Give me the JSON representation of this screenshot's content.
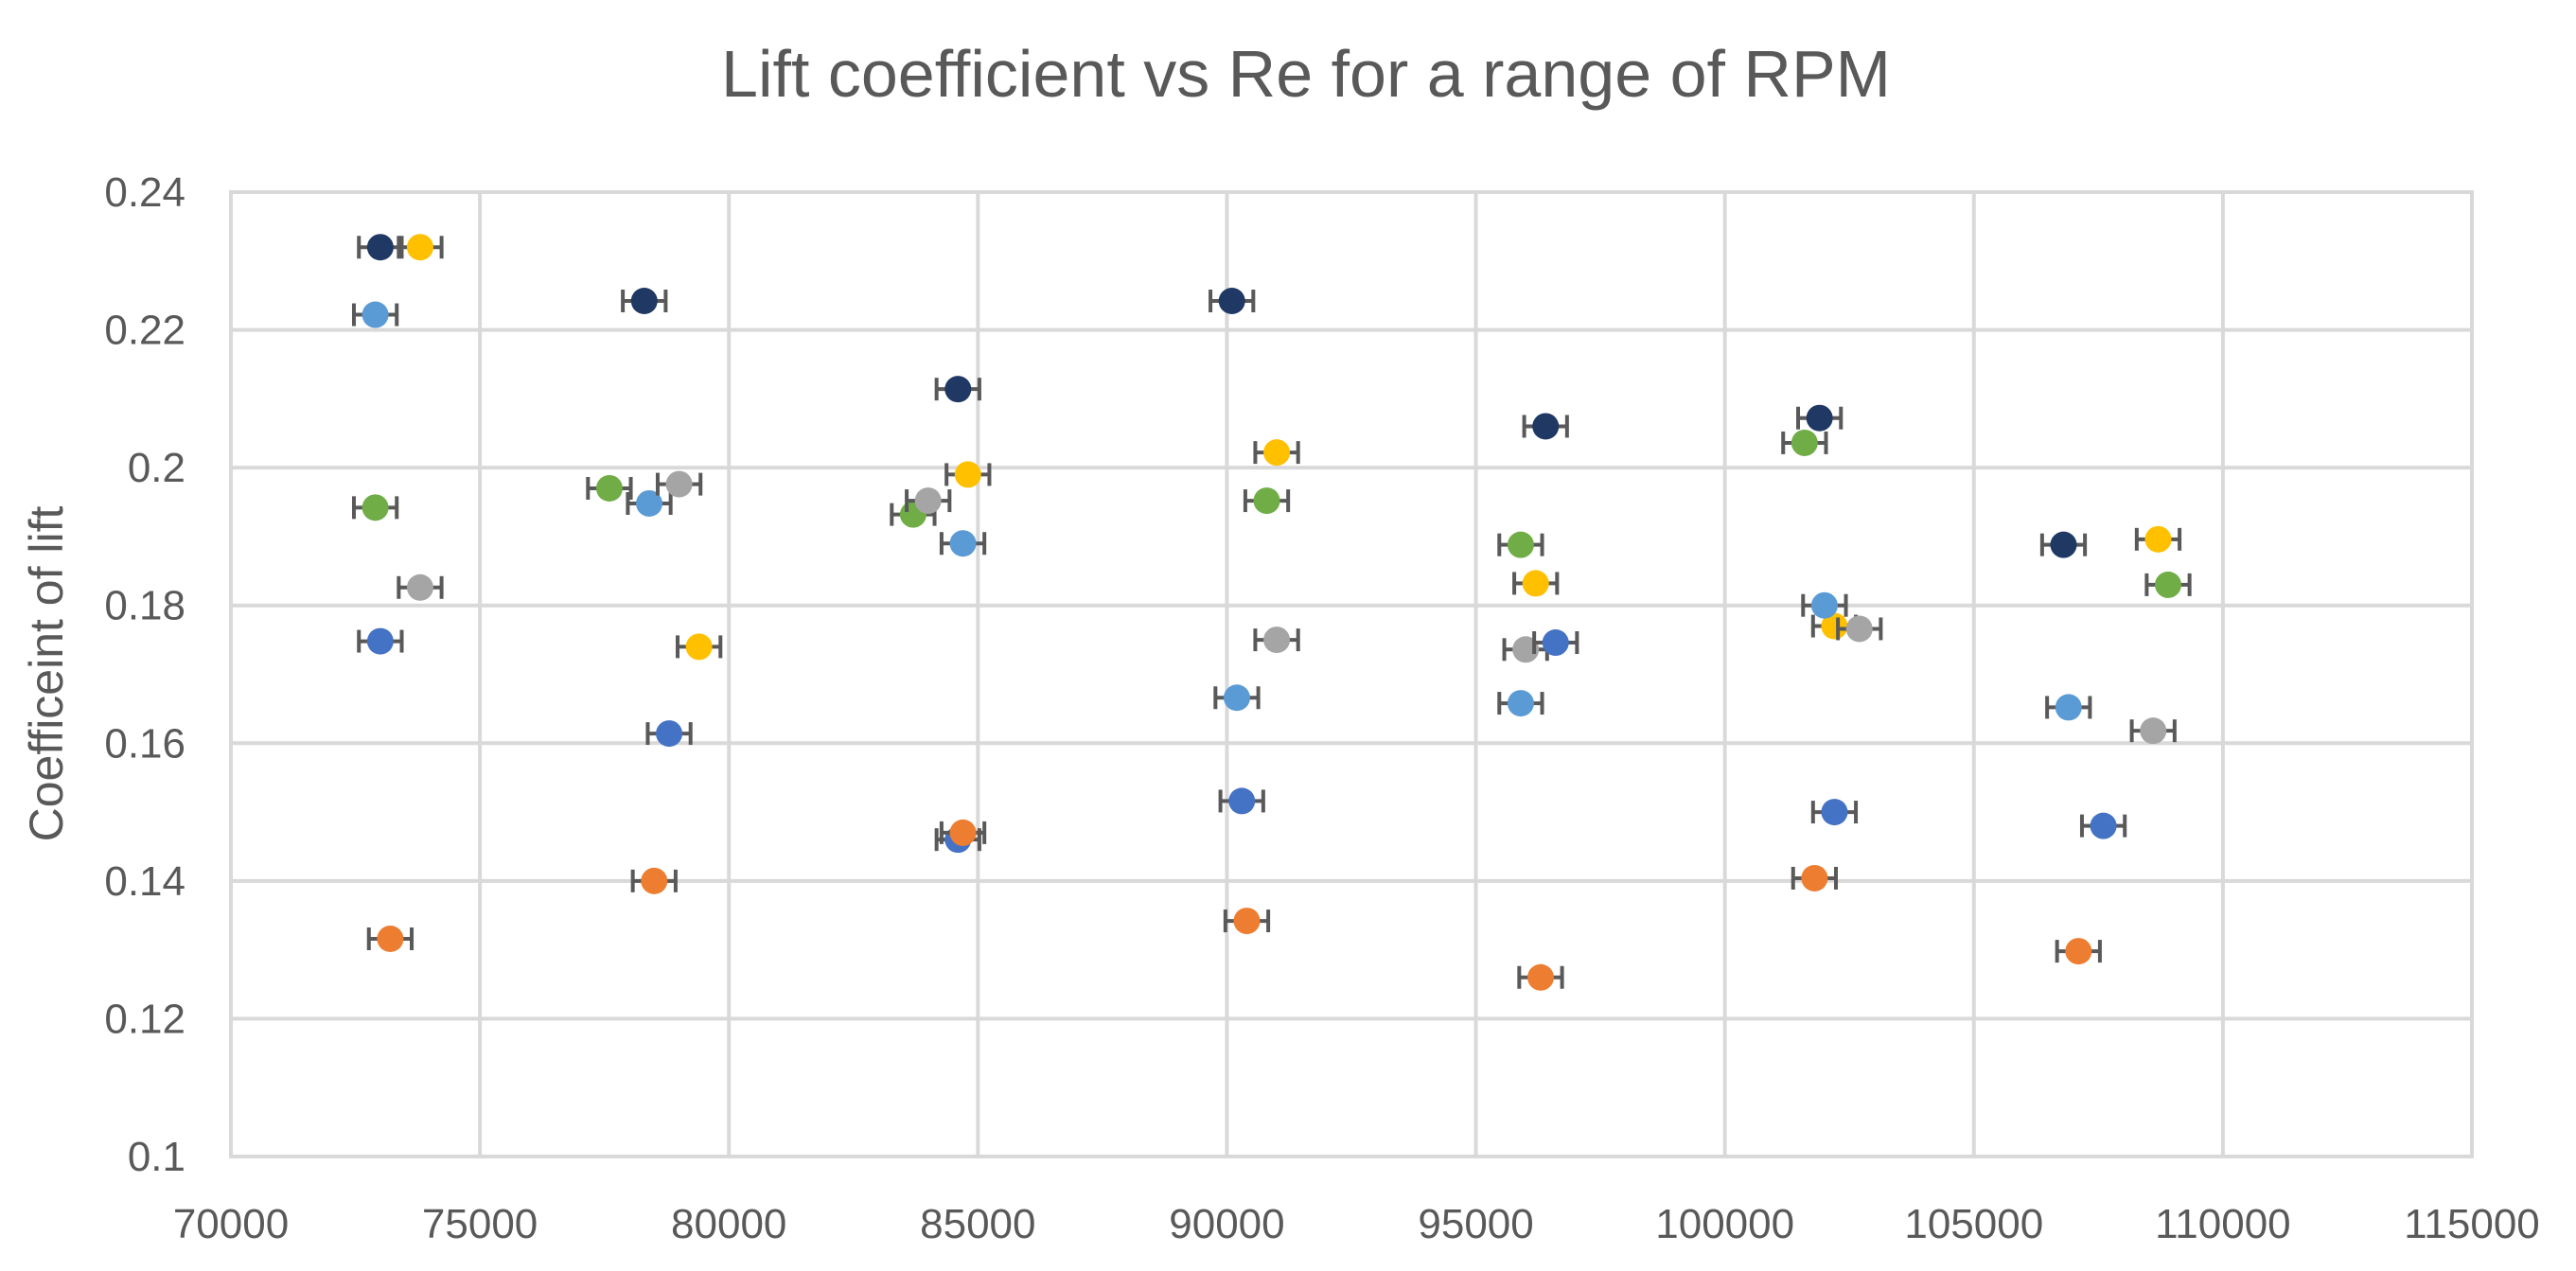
{
  "chart_data": {
    "type": "scatter",
    "title": "Lift coefficient vs Re for a range of RPM",
    "xlabel": "",
    "ylabel": "Coefficeint of lift",
    "xlim": [
      70000,
      115000
    ],
    "ylim": [
      0.1,
      0.24
    ],
    "x_ticks": [
      "70000",
      "75000",
      "80000",
      "85000",
      "90000",
      "95000",
      "100000",
      "105000",
      "110000",
      "115000"
    ],
    "y_ticks": [
      "0.1",
      "0.12",
      "0.14",
      "0.16",
      "0.18",
      "0.2",
      "0.22",
      "0.24"
    ],
    "x_tick_values": [
      70000,
      75000,
      80000,
      85000,
      90000,
      95000,
      100000,
      105000,
      110000,
      115000
    ],
    "y_tick_values": [
      0.1,
      0.12,
      0.14,
      0.16,
      0.18,
      0.2,
      0.22,
      0.24
    ],
    "grid": true,
    "legend": "none",
    "x_error": 430,
    "series": [
      {
        "color": "#1F3864",
        "points": [
          [
            73000,
            0.232
          ],
          [
            78300,
            0.2242
          ],
          [
            84600,
            0.2114
          ],
          [
            90100,
            0.2242
          ],
          [
            96400,
            0.206
          ],
          [
            101900,
            0.2072
          ],
          [
            106800,
            0.1888
          ]
        ]
      },
      {
        "color": "#FFC000",
        "points": [
          [
            73800,
            0.232
          ],
          [
            79400,
            0.174
          ],
          [
            84800,
            0.199
          ],
          [
            91000,
            0.2022
          ],
          [
            96200,
            0.1832
          ],
          [
            102200,
            0.177
          ],
          [
            108700,
            0.1896
          ]
        ]
      },
      {
        "color": "#5B9BD5",
        "points": [
          [
            72900,
            0.2222
          ],
          [
            78400,
            0.1948
          ],
          [
            84700,
            0.189
          ],
          [
            90200,
            0.1666
          ],
          [
            95900,
            0.1658
          ],
          [
            102000,
            0.18
          ],
          [
            106900,
            0.1652
          ]
        ]
      },
      {
        "color": "#70AD47",
        "points": [
          [
            72900,
            0.1942
          ],
          [
            77600,
            0.197
          ],
          [
            83700,
            0.1932
          ],
          [
            90800,
            0.1952
          ],
          [
            95900,
            0.1888
          ],
          [
            101600,
            0.2036
          ],
          [
            108900,
            0.183
          ]
        ]
      },
      {
        "color": "#A5A5A5",
        "points": [
          [
            73800,
            0.1826
          ],
          [
            79000,
            0.1976
          ],
          [
            84000,
            0.1952
          ],
          [
            91000,
            0.175
          ],
          [
            96000,
            0.1736
          ],
          [
            102700,
            0.1766
          ],
          [
            108600,
            0.1618
          ]
        ]
      },
      {
        "color": "#4472C4",
        "points": [
          [
            73000,
            0.1748
          ],
          [
            78800,
            0.1614
          ],
          [
            84600,
            0.146
          ],
          [
            90300,
            0.1516
          ],
          [
            96600,
            0.1746
          ],
          [
            102200,
            0.15
          ],
          [
            107600,
            0.148
          ]
        ]
      },
      {
        "color": "#ED7D31",
        "points": [
          [
            73200,
            0.1316
          ],
          [
            78500,
            0.14
          ],
          [
            84700,
            0.147
          ],
          [
            90400,
            0.1342
          ],
          [
            96300,
            0.126
          ],
          [
            101800,
            0.1404
          ],
          [
            107100,
            0.1298
          ]
        ]
      }
    ]
  }
}
